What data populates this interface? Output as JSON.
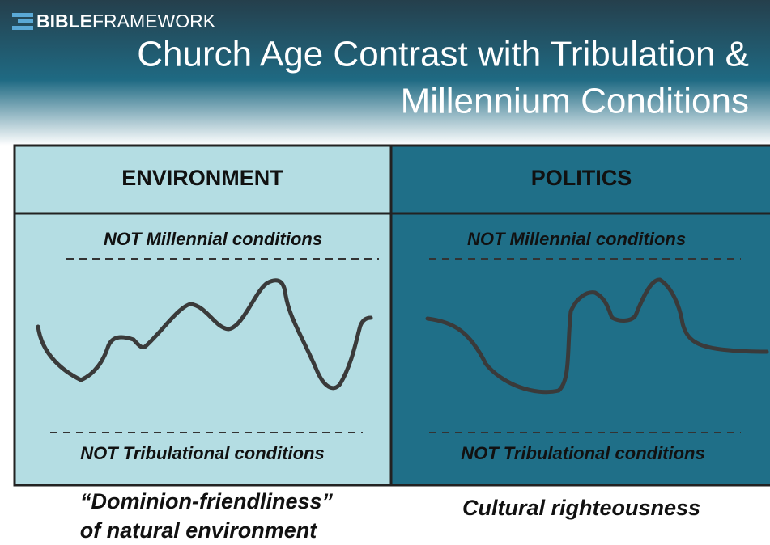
{
  "header": {
    "logo": {
      "bold": "BIBLE",
      "light": "FRAMEWORK"
    },
    "title": [
      "Church Age Contrast with Tribulation &",
      "Millennium Conditions"
    ]
  },
  "panels": [
    {
      "heading": "ENVIRONMENT",
      "top_label": "NOT Millennial conditions",
      "bottom_label": "NOT Tribulational conditions",
      "caption": [
        "“Dominion-friendliness”",
        "of natural environment"
      ]
    },
    {
      "heading": "POLITICS",
      "top_label": "NOT Millennial conditions",
      "bottom_label": "NOT Tribulational conditions",
      "caption": [
        "Cultural righteousness"
      ]
    }
  ]
}
